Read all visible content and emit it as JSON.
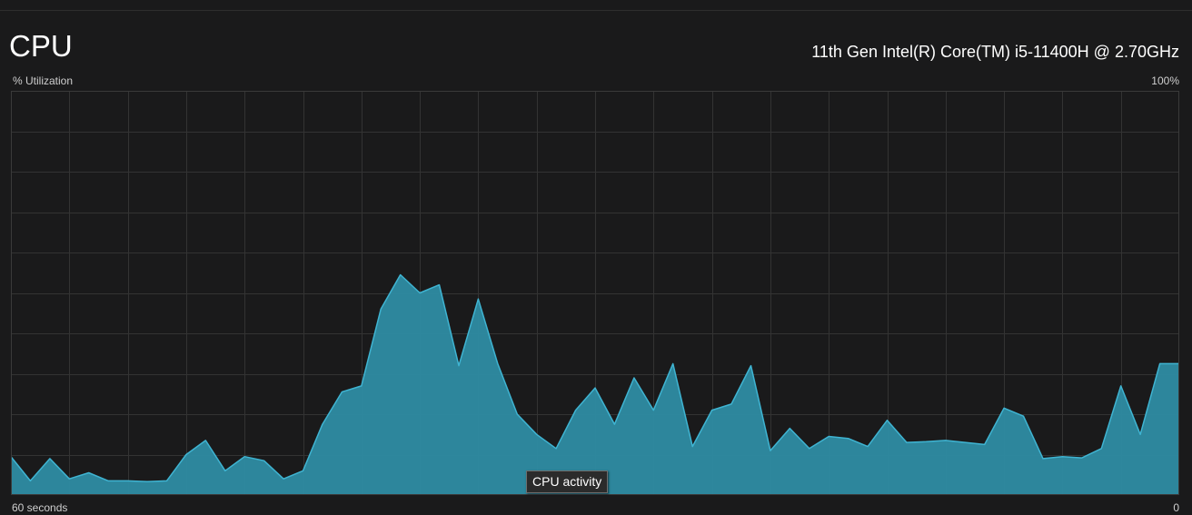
{
  "header": {
    "title": "CPU",
    "processor_name": "11th Gen Intel(R) Core(TM) i5-11400H @ 2.70GHz"
  },
  "graph": {
    "y_label": "% Utilization",
    "y_max_label": "100%",
    "x_start_label": "60 seconds",
    "x_end_label": "0",
    "tooltip": "CPU activity",
    "fill_color": "#2e8ca3",
    "line_color": "#3fb4d2",
    "grid_color": "#333333",
    "border_color": "#3a3a3a"
  },
  "chart_data": {
    "type": "area",
    "xlabel": "",
    "ylabel": "% Utilization",
    "xlim": [
      60,
      0
    ],
    "ylim": [
      0,
      100
    ],
    "grid": true,
    "x": [
      60,
      59,
      58,
      57,
      56,
      55,
      54,
      53,
      52,
      51,
      50,
      49,
      48,
      47,
      46,
      45,
      44,
      43,
      42,
      41,
      40,
      39,
      38,
      37,
      36,
      35,
      34,
      33,
      32,
      31,
      30,
      29,
      28,
      27,
      26,
      25,
      24,
      23,
      22,
      21,
      20,
      19,
      18,
      17,
      16,
      15,
      14,
      13,
      12,
      11,
      10,
      9,
      8,
      7,
      6,
      5,
      4,
      3,
      2,
      1,
      0
    ],
    "series": [
      {
        "values": [
          9.5,
          3.5,
          9,
          4,
          5.5,
          3.5,
          3.5,
          3.3,
          3.5,
          10,
          13.5,
          6,
          9.5,
          8.5,
          4,
          6,
          17.5,
          25.5,
          27,
          46,
          54.5,
          50,
          52,
          32,
          48.5,
          32.5,
          20,
          15,
          11.5,
          21,
          26.5,
          17.5,
          29,
          21,
          32.5,
          12,
          21,
          22.5,
          32,
          11,
          16.5,
          11.5,
          14.5,
          14,
          12,
          18.5,
          13,
          13.2,
          13.5,
          13,
          12.5,
          21.5,
          19.5,
          9,
          9.5,
          9.2,
          11.5,
          27,
          15,
          32.5,
          32.5
        ]
      }
    ]
  }
}
